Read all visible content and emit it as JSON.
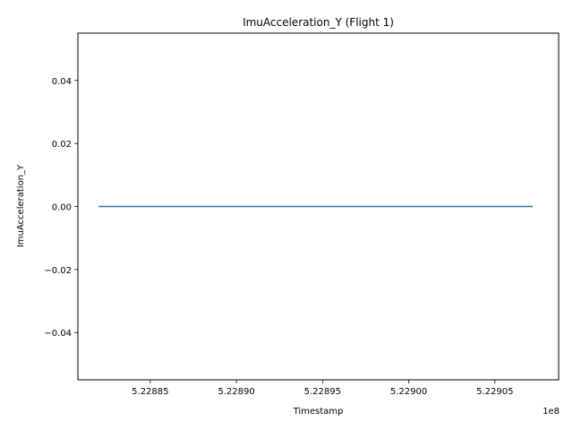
{
  "chart_data": {
    "type": "line",
    "title": "ImuAcceleration_Y (Flight 1)",
    "xlabel": "Timestamp",
    "ylabel": "ImuAcceleration_Y",
    "x_offset_label": "1e8",
    "x_scale": 100000000,
    "xlim": [
      5.228808,
      5.229087
    ],
    "ylim": [
      -0.055,
      0.055
    ],
    "xticks": [
      5.22885,
      5.2289,
      5.22895,
      5.229,
      5.22905
    ],
    "xtick_labels": [
      "5.22885",
      "5.22890",
      "5.22895",
      "5.22900",
      "5.22905"
    ],
    "yticks": [
      -0.04,
      -0.02,
      0.0,
      0.02,
      0.04
    ],
    "ytick_labels": [
      "−0.04",
      "−0.02",
      "0.00",
      "0.02",
      "0.04"
    ],
    "grid": false,
    "series": [
      {
        "color": "#1f77b4",
        "x": [
          5.22882,
          5.229072
        ],
        "y": [
          0.0,
          0.0
        ]
      }
    ]
  }
}
